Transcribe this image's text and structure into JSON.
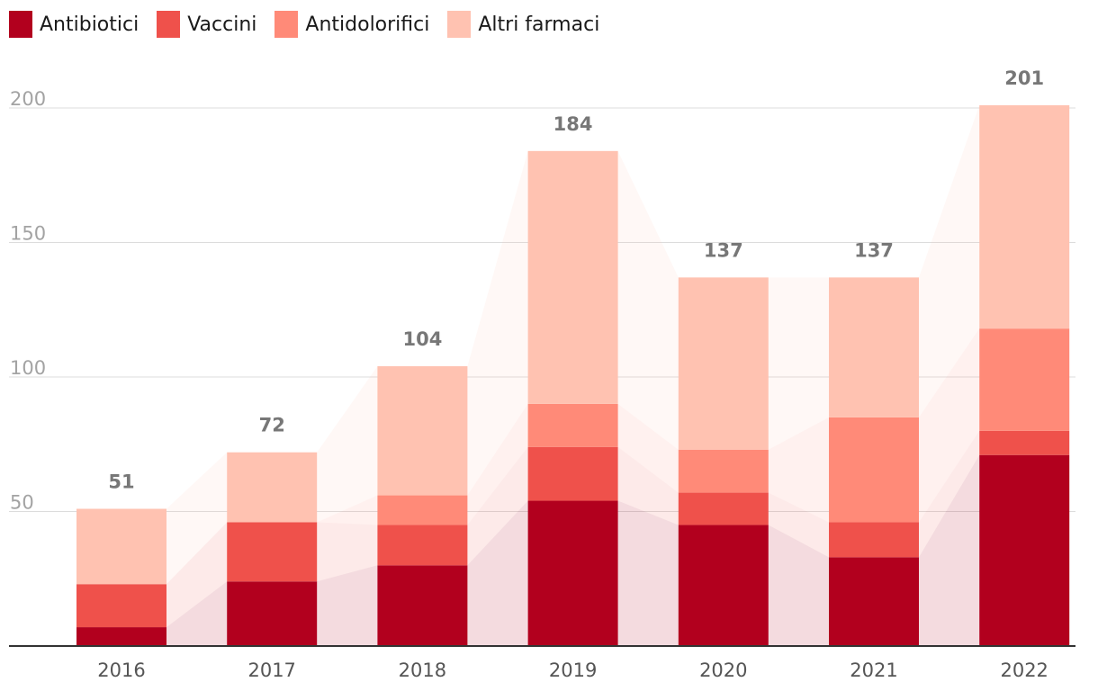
{
  "chart_data": {
    "type": "bar",
    "stacked": true,
    "categories": [
      "2016",
      "2017",
      "2018",
      "2019",
      "2020",
      "2021",
      "2022"
    ],
    "series": [
      {
        "name": "Antibiotici",
        "color": "#b2001e",
        "values": [
          7,
          24,
          30,
          54,
          45,
          33,
          71
        ]
      },
      {
        "name": "Vaccini",
        "color": "#ef514b",
        "values": [
          16,
          22,
          15,
          20,
          12,
          13,
          9
        ]
      },
      {
        "name": "Antidolorifici",
        "color": "#ff8a78",
        "values": [
          0,
          0,
          11,
          16,
          16,
          39,
          38
        ]
      },
      {
        "name": "Altri farmaci",
        "color": "#ffc2b1",
        "values": [
          28,
          26,
          48,
          94,
          64,
          52,
          83
        ]
      }
    ],
    "totals": [
      51,
      72,
      104,
      184,
      137,
      137,
      201
    ],
    "yticks": [
      50,
      100,
      150,
      200
    ],
    "ylim": [
      0,
      225
    ],
    "grid": true,
    "legend": "top-left",
    "title": "",
    "xlabel": "",
    "ylabel": ""
  }
}
